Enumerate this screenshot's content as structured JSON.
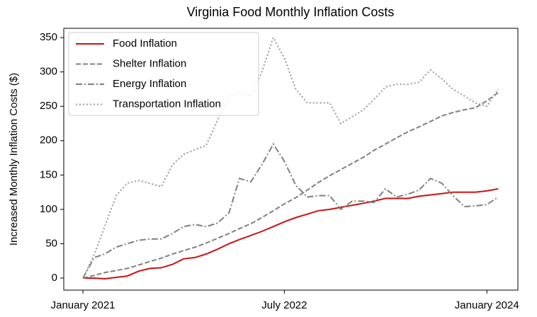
{
  "chart_data": {
    "type": "line",
    "title": "Virginia Food Monthly Inflation Costs",
    "ylabel": "Increased Monthly Inflation Costs ($)",
    "x": [
      "2021-01",
      "2021-02",
      "2021-03",
      "2021-04",
      "2021-05",
      "2021-06",
      "2021-07",
      "2021-08",
      "2021-09",
      "2021-10",
      "2021-11",
      "2021-12",
      "2022-01",
      "2022-02",
      "2022-03",
      "2022-04",
      "2022-05",
      "2022-06",
      "2022-07",
      "2022-08",
      "2022-09",
      "2022-10",
      "2022-11",
      "2022-12",
      "2023-01",
      "2023-02",
      "2023-03",
      "2023-04",
      "2023-05",
      "2023-06",
      "2023-07",
      "2023-08",
      "2023-09",
      "2023-10",
      "2023-11",
      "2023-12",
      "2024-01",
      "2024-02"
    ],
    "series": [
      {
        "name": "Food Inflation",
        "color": "#cc1111",
        "style": "solid",
        "values": [
          0,
          0,
          -1,
          1,
          3,
          10,
          14,
          15,
          20,
          28,
          30,
          35,
          42,
          50,
          56,
          62,
          68,
          75,
          82,
          88,
          93,
          98,
          100,
          103,
          106,
          109,
          112,
          116,
          116,
          116,
          119,
          121,
          123,
          125,
          125,
          125,
          127,
          130
        ]
      },
      {
        "name": "Shelter Inflation",
        "color": "#808080",
        "style": "dashed",
        "values": [
          0,
          4,
          8,
          11,
          14,
          19,
          24,
          29,
          35,
          40,
          45,
          51,
          58,
          65,
          72,
          79,
          88,
          98,
          108,
          117,
          128,
          139,
          149,
          158,
          167,
          176,
          186,
          195,
          204,
          213,
          220,
          228,
          236,
          241,
          245,
          248,
          258,
          270
        ]
      },
      {
        "name": "Energy Inflation",
        "color": "#808080",
        "style": "dashdot",
        "values": [
          0,
          30,
          35,
          45,
          50,
          55,
          57,
          57,
          65,
          75,
          78,
          75,
          80,
          95,
          145,
          140,
          165,
          195,
          170,
          135,
          118,
          120,
          120,
          100,
          112,
          112,
          110,
          130,
          118,
          122,
          128,
          145,
          138,
          120,
          104,
          105,
          107,
          118
        ]
      },
      {
        "name": "Transportation Inflation",
        "color": "#999999",
        "style": "dotted",
        "values": [
          0,
          35,
          75,
          120,
          138,
          142,
          138,
          133,
          165,
          180,
          187,
          193,
          230,
          265,
          270,
          265,
          300,
          350,
          320,
          275,
          255,
          255,
          255,
          225,
          235,
          245,
          260,
          278,
          282,
          282,
          285,
          303,
          290,
          275,
          265,
          255,
          250,
          275
        ]
      }
    ],
    "xlim": [
      "2020-11-10",
      "2024-03-25"
    ],
    "xticks": [
      {
        "value": "2021-01",
        "label": "January 2021"
      },
      {
        "value": "2022-07",
        "label": "July 2022"
      },
      {
        "value": "2024-01",
        "label": "January 2024"
      }
    ],
    "ylim": [
      -17.5,
      363.5
    ],
    "yticks": [
      0,
      50,
      100,
      150,
      200,
      250,
      300,
      350
    ],
    "legend": "upper left"
  }
}
